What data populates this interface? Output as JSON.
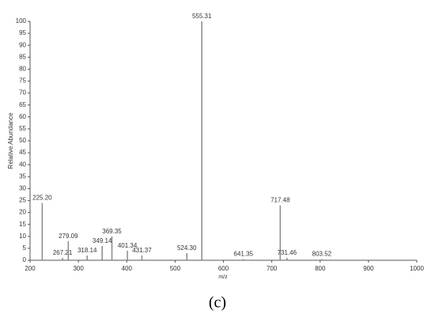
{
  "chart_data": {
    "type": "stem",
    "x_label": "m/z",
    "y_label": "Relative Abundance",
    "caption": "(c)",
    "x": [
      225.2,
      267.21,
      279.09,
      318.14,
      349.14,
      369.35,
      401.34,
      431.37,
      524.3,
      555.31,
      641.35,
      717.48,
      731.46,
      803.52
    ],
    "values": [
      24,
      1,
      8,
      2,
      6,
      10,
      4,
      2,
      3,
      100,
      0.5,
      23,
      1,
      0.5
    ],
    "peak_labels": [
      "225.20",
      "267.21",
      "279.09",
      "318.14",
      "349.14",
      "369.35",
      "401.34",
      "431.37",
      "524.30",
      "555.31",
      "641.35",
      "717.48",
      "731.46",
      "803.52"
    ],
    "color": "#8a8a8a",
    "xlim": [
      200,
      1000
    ],
    "xticks": [
      200,
      300,
      400,
      500,
      600,
      700,
      800,
      900,
      1000
    ],
    "ylim": [
      0,
      100
    ],
    "yticks": [
      0,
      5,
      10,
      15,
      20,
      25,
      30,
      35,
      40,
      45,
      50,
      55,
      60,
      65,
      70,
      75,
      80,
      85,
      90,
      95,
      100
    ]
  }
}
